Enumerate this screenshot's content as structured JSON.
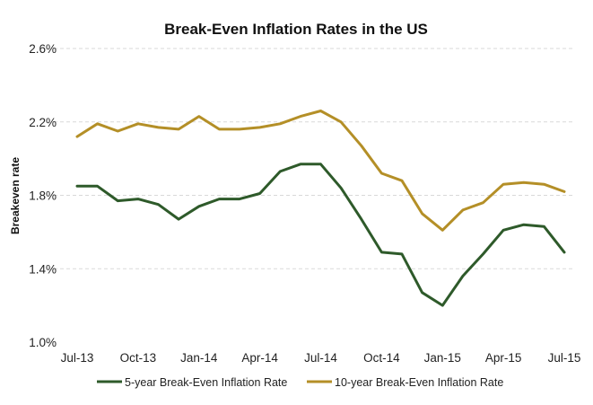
{
  "chart_data": {
    "type": "line",
    "title": "Break-Even Inflation Rates in the US",
    "xlabel": "",
    "ylabel": "Breakeven rate",
    "ylim": [
      1.0,
      2.6
    ],
    "yticks": [
      1.0,
      1.4,
      1.8,
      2.2,
      2.6
    ],
    "ytick_labels": [
      "1.0%",
      "1.4%",
      "1.8%",
      "2.2%",
      "2.6%"
    ],
    "x": [
      "Jul-13",
      "Aug-13",
      "Sep-13",
      "Oct-13",
      "Nov-13",
      "Dec-13",
      "Jan-14",
      "Feb-14",
      "Mar-14",
      "Apr-14",
      "May-14",
      "Jun-14",
      "Jul-14",
      "Aug-14",
      "Sep-14",
      "Oct-14",
      "Nov-14",
      "Dec-14",
      "Jan-15",
      "Feb-15",
      "Mar-15",
      "Apr-15",
      "May-15",
      "Jun-15",
      "Jul-15"
    ],
    "xtick_labels": [
      "Jul-13",
      "Oct-13",
      "Jan-14",
      "Apr-14",
      "Jul-14",
      "Oct-14",
      "Jan-15",
      "Apr-15",
      "Jul-15"
    ],
    "grid": "horizontal",
    "legend": "bottom",
    "series": [
      {
        "name": "5-year Break-Even Inflation Rate",
        "color": "#2e5a2a",
        "values": [
          1.85,
          1.85,
          1.77,
          1.78,
          1.75,
          1.67,
          1.74,
          1.78,
          1.78,
          1.81,
          1.93,
          1.97,
          1.97,
          1.84,
          1.67,
          1.49,
          1.48,
          1.27,
          1.2,
          1.36,
          1.48,
          1.61,
          1.64,
          1.63,
          1.49
        ]
      },
      {
        "name": "10-year Break-Even Inflation Rate",
        "color": "#b48f27",
        "values": [
          2.12,
          2.19,
          2.15,
          2.19,
          2.17,
          2.16,
          2.23,
          2.16,
          2.16,
          2.17,
          2.19,
          2.23,
          2.26,
          2.2,
          2.07,
          1.92,
          1.88,
          1.7,
          1.61,
          1.72,
          1.76,
          1.86,
          1.87,
          1.86,
          1.82
        ]
      }
    ]
  }
}
